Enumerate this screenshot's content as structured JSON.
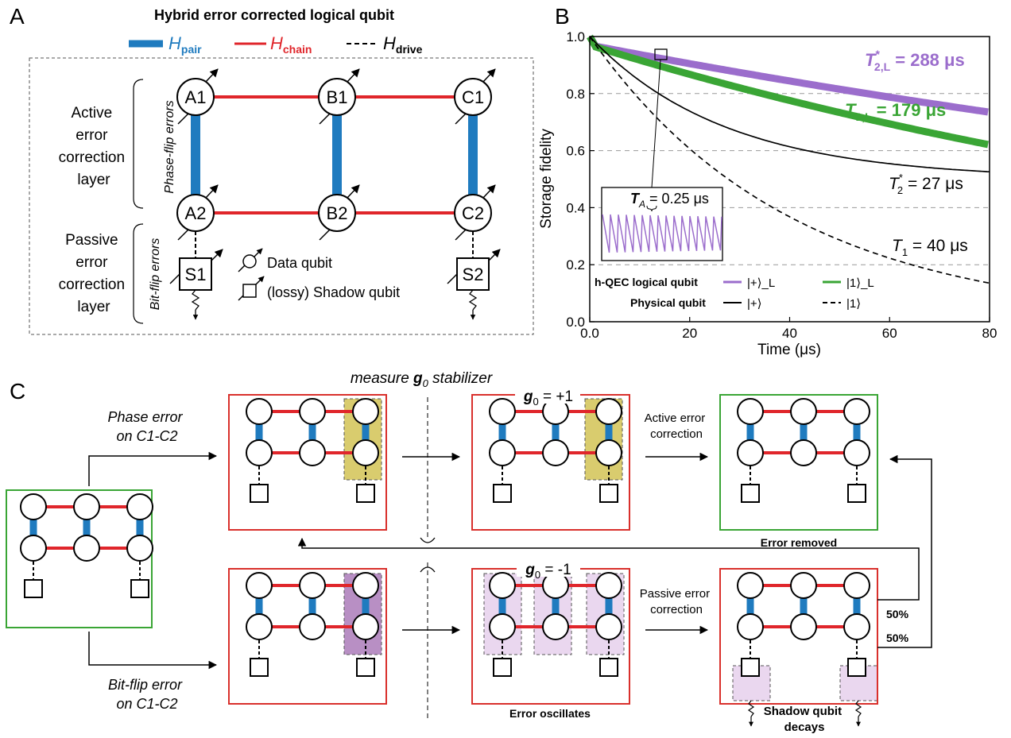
{
  "colors": {
    "pair": "#1f7bbf",
    "chain": "#e0262b",
    "purple": "#9b6dcc",
    "green": "#3aa535",
    "frame_red": "#d9302c",
    "frame_green": "#3aa535",
    "gold": "#d9cc6e",
    "purple_dark": "#b88fc4",
    "purple_light": "#ead7ef"
  },
  "panel_a": {
    "letter": "A",
    "title": "Hybrid error corrected logical qubit",
    "legend": [
      {
        "base": "H",
        "sub": "pair",
        "style": "blue-thick"
      },
      {
        "base": "H",
        "sub": "chain",
        "style": "red"
      },
      {
        "base": "H",
        "sub": "drive",
        "style": "dashed"
      }
    ],
    "active_layer": [
      "Active",
      "error",
      "correction",
      "layer"
    ],
    "passive_layer": [
      "Passive",
      "error",
      "correction",
      "layer"
    ],
    "phase_flip": "Phase-flip errors",
    "bit_flip": "Bit-flip errors",
    "qubits": {
      "A1": "A1",
      "B1": "B1",
      "C1": "C1",
      "A2": "A2",
      "B2": "B2",
      "C2": "C2"
    },
    "shadows": {
      "S1": "S1",
      "S2": "S2"
    },
    "data_qubit": "Data qubit",
    "shadow_qubit": "(lossy) Shadow qubit"
  },
  "panel_b": {
    "letter": "B",
    "ylabel": "Storage fidelity",
    "xlabel": "Time (μs)",
    "inset_label": "T_A = 0.25 μs",
    "legend": {
      "logical_label": "h-QEC logical qubit",
      "logical_plus": "|+⟩_L",
      "logical_one": "|1⟩_L",
      "physical_label": "Physical qubit",
      "physical_plus": "|+⟩",
      "physical_one": "|1⟩"
    },
    "annotations": {
      "t2L": "T*2,L = 288 μs",
      "t1L": "T1,L = 179 μs",
      "t2": "T*2 = 27 μs",
      "t1": "T1 = 40 μs"
    }
  },
  "panel_c": {
    "letter": "C",
    "measure": "measure g0 stabilizer",
    "phase_error": [
      "Phase error",
      "on C1-C2"
    ],
    "bitflip_error": [
      "Bit-flip error",
      "on C1-C2"
    ],
    "g0_plus": "g0 = +1",
    "g0_minus": "g0 = -1",
    "active_correction": [
      "Active error",
      "correction"
    ],
    "passive_correction": [
      "Passive error",
      "correction"
    ],
    "error_removed": "Error removed",
    "error_oscillates": "Error oscillates",
    "shadow_decays": [
      "Shadow qubit",
      "decays"
    ],
    "pct_upper": "50%",
    "pct_lower": "50%"
  },
  "chart_data": {
    "type": "line",
    "xlabel": "Time (μs)",
    "ylabel": "Storage fidelity",
    "xlim": [
      0,
      80
    ],
    "ylim": [
      0,
      1
    ],
    "x_ticks": [
      "0.0",
      "20",
      "40",
      "60",
      "80"
    ],
    "y_ticks": [
      "0.0",
      "0.2",
      "0.4",
      "0.6",
      "0.8",
      "1.0"
    ],
    "grid": "horizontal dashed",
    "legend_position": "bottom-left",
    "series": [
      {
        "name": "h-QEC logical qubit |+⟩_L",
        "model": "exp",
        "A": 0.97,
        "tau": 288,
        "x": [
          0,
          10,
          20,
          30,
          40,
          50,
          60,
          70,
          80
        ],
        "values": [
          0.97,
          0.937,
          0.905,
          0.874,
          0.845,
          0.816,
          0.788,
          0.761,
          0.735
        ]
      },
      {
        "name": "h-QEC logical qubit |1⟩_L",
        "model": "exp",
        "A": 0.97,
        "tau": 179,
        "x": [
          0,
          10,
          20,
          30,
          40,
          50,
          60,
          70,
          80
        ],
        "values": [
          0.97,
          0.917,
          0.866,
          0.818,
          0.773,
          0.73,
          0.69,
          0.652,
          0.616
        ]
      },
      {
        "name": "Physical qubit |+⟩",
        "model": "exp_offset",
        "A": 0.5,
        "tau": 27,
        "offset": 0.5,
        "x": [
          0,
          10,
          20,
          30,
          40,
          50,
          60,
          70,
          80
        ],
        "values": [
          1.0,
          0.845,
          0.738,
          0.665,
          0.614,
          0.578,
          0.554,
          0.537,
          0.526
        ]
      },
      {
        "name": "Physical qubit |1⟩",
        "model": "exp",
        "A": 1.0,
        "tau": 40,
        "x": [
          0,
          10,
          20,
          30,
          40,
          50,
          60,
          70,
          80
        ],
        "values": [
          1.0,
          0.779,
          0.607,
          0.472,
          0.368,
          0.287,
          0.223,
          0.174,
          0.135
        ]
      }
    ]
  }
}
